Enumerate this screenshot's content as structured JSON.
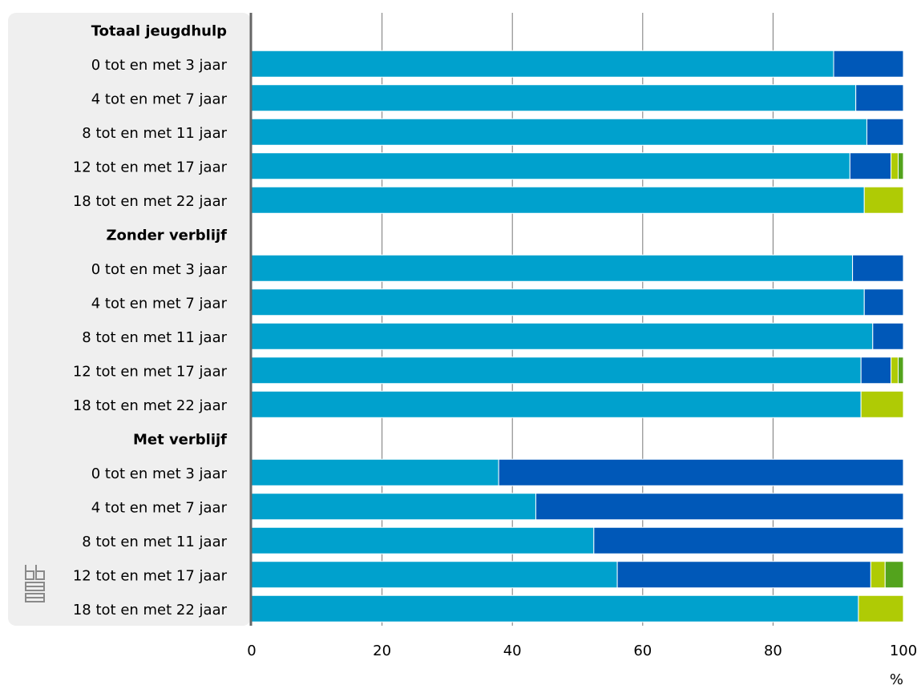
{
  "chart_data": {
    "type": "bar",
    "orientation": "horizontal",
    "stacked": true,
    "title": "",
    "xlabel": "",
    "ylabel": "",
    "x_unit": "%",
    "xlim": [
      0,
      100
    ],
    "x_ticks": [
      "0",
      "20",
      "40",
      "60",
      "80",
      "100"
    ],
    "grid": "vertical",
    "legend": "none",
    "colors": [
      "#00a1cd",
      "#0058b8",
      "#afcb05",
      "#53a31d"
    ],
    "categories": [
      {
        "label": "Totaal jeugdhulp",
        "header": true
      },
      {
        "label": "0 tot en met 3 jaar",
        "values": [
          89.3,
          10.7,
          0,
          0
        ]
      },
      {
        "label": "4 tot en met 7 jaar",
        "values": [
          92.7,
          7.3,
          0,
          0
        ]
      },
      {
        "label": "8 tot en met 11 jaar",
        "values": [
          94.4,
          5.6,
          0,
          0
        ]
      },
      {
        "label": "12 tot en met 17 jaar",
        "values": [
          91.8,
          6.3,
          1.1,
          0.8
        ]
      },
      {
        "label": "18 tot en met 22 jaar",
        "values": [
          94.0,
          0,
          6.0,
          0
        ]
      },
      {
        "label": "Zonder verblijf",
        "header": true
      },
      {
        "label": "0 tot en met 3 jaar",
        "values": [
          92.2,
          7.8,
          0,
          0
        ]
      },
      {
        "label": "4 tot en met 7 jaar",
        "values": [
          94.0,
          6.0,
          0,
          0
        ]
      },
      {
        "label": "8 tot en met 11 jaar",
        "values": [
          95.3,
          4.7,
          0,
          0
        ]
      },
      {
        "label": "12 tot en met 17 jaar",
        "values": [
          93.5,
          4.6,
          1.1,
          0.8
        ]
      },
      {
        "label": "18 tot en met 22 jaar",
        "values": [
          93.5,
          0,
          6.5,
          0
        ]
      },
      {
        "label": "Met verblijf",
        "header": true
      },
      {
        "label": "0 tot en met 3 jaar",
        "values": [
          37.9,
          62.1,
          0,
          0
        ]
      },
      {
        "label": "4 tot en met 7 jaar",
        "values": [
          43.6,
          56.4,
          0,
          0
        ]
      },
      {
        "label": "8 tot en met 11 jaar",
        "values": [
          52.5,
          47.5,
          0,
          0
        ]
      },
      {
        "label": "12 tot en met 17 jaar",
        "values": [
          56.1,
          38.9,
          2.2,
          2.8
        ]
      },
      {
        "label": "18 tot en met 22 jaar",
        "values": [
          93.1,
          0,
          6.9,
          0
        ]
      }
    ]
  },
  "logo": {
    "icon": "cbs-logo-icon"
  }
}
